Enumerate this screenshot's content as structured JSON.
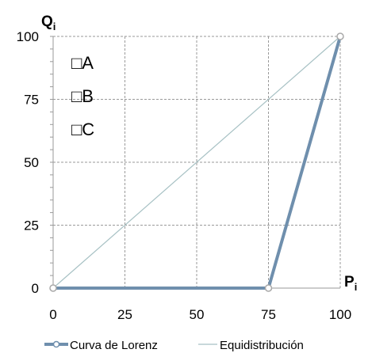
{
  "chart_data": {
    "type": "line",
    "x_axis": {
      "title": "P",
      "subscript": "i",
      "min": 0,
      "max": 100,
      "ticks": [
        0,
        25,
        50,
        75,
        100
      ]
    },
    "y_axis": {
      "title": "Q",
      "subscript": "i",
      "min": 0,
      "max": 100,
      "ticks": [
        0,
        25,
        50,
        75,
        100
      ]
    },
    "grid": true,
    "legend_placement": "bottom",
    "series": [
      {
        "name": "Curva de Lorenz",
        "color": "#6f8fad",
        "markers": true,
        "points": [
          {
            "x": 0,
            "y": 0
          },
          {
            "x": 75,
            "y": 0
          },
          {
            "x": 100,
            "y": 100
          }
        ]
      },
      {
        "name": "Equidistribución",
        "color": "#a7c1c4",
        "markers": false,
        "points": [
          {
            "x": 0,
            "y": 0
          },
          {
            "x": 100,
            "y": 100
          }
        ]
      }
    ],
    "options": [
      {
        "box": "□",
        "label": "A"
      },
      {
        "box": "□",
        "label": "B"
      },
      {
        "box": "□",
        "label": "C"
      }
    ]
  }
}
